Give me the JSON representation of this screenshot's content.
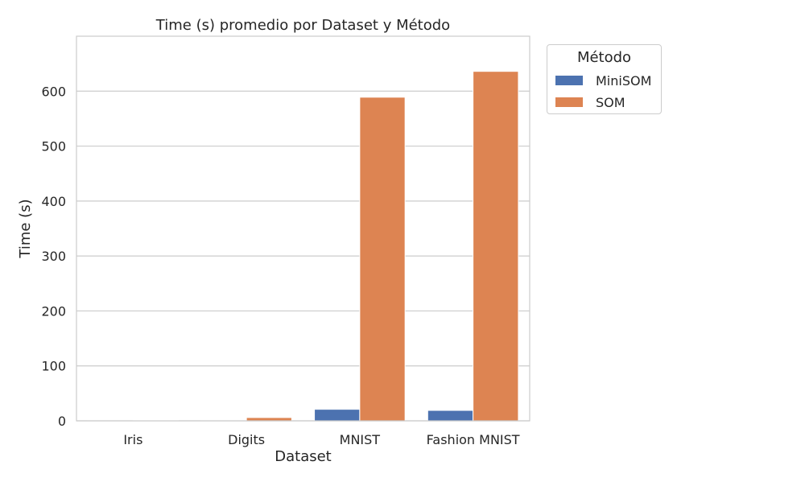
{
  "chart_data": {
    "type": "bar",
    "title": "Time (s) promedio por Dataset y Método",
    "xlabel": "Dataset",
    "ylabel": "Time (s)",
    "categories": [
      "Iris",
      "Digits",
      "MNIST",
      "Fashion MNIST"
    ],
    "series": [
      {
        "name": "MiniSOM",
        "color": "#4c72b0",
        "values": [
          0.3,
          0.5,
          21,
          19
        ]
      },
      {
        "name": "SOM",
        "color": "#dd8452",
        "values": [
          1,
          6,
          589,
          636
        ]
      }
    ],
    "ylim": [
      0,
      700
    ],
    "yticks": [
      0,
      100,
      200,
      300,
      400,
      500,
      600
    ],
    "grid": true,
    "legend": {
      "title": "Método",
      "placement": "outside-top-right"
    }
  }
}
